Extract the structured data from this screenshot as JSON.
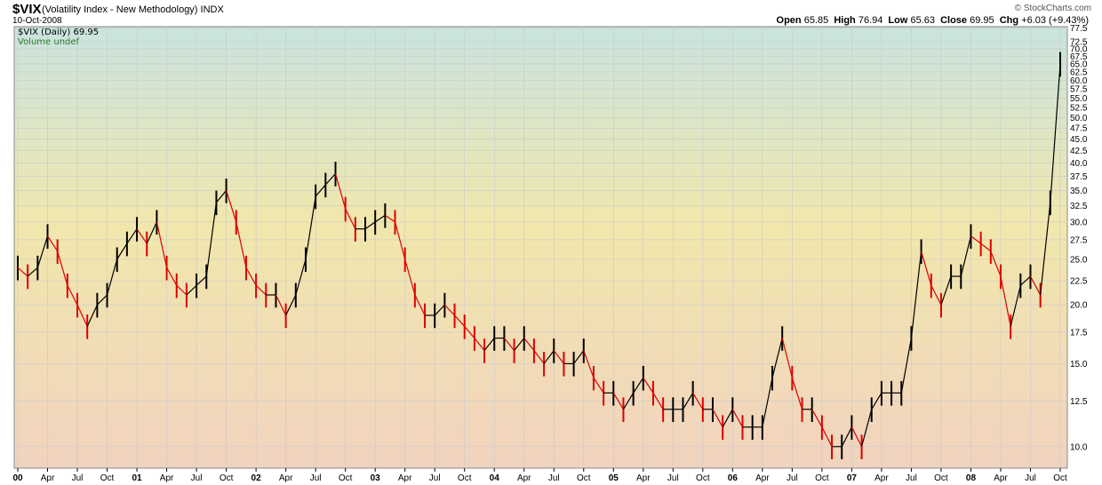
{
  "header": {
    "symbol": "$VIX",
    "name": "(Volatility Index - New Methodology)",
    "exchange": "INDX",
    "date": "10-Oct-2008",
    "logo": "© StockCharts.com",
    "ohlc": {
      "open_label": "Open",
      "open": "65.85",
      "high_label": "High",
      "high": "76.94",
      "low_label": "Low",
      "low": "65.63",
      "close_label": "Close",
      "close": "69.95",
      "chg_label": "Chg",
      "chg": "+6.03 (+9.43%)"
    }
  },
  "legend": {
    "series_label": "$VIX (Daily) 69.95",
    "volume_label": "Volume undef"
  },
  "colors": {
    "up": "#000000",
    "down": "#dd0000",
    "grid": "#c9c9c9",
    "bg_top": "#c9e4df",
    "bg_mid": "#f1e7ac",
    "bg_bottom": "#f1d3bf"
  },
  "chart_data": {
    "type": "line",
    "scale": "log",
    "ylim": [
      9,
      78
    ],
    "yticks": [
      "77.5",
      "72.5",
      "70.0",
      "67.5",
      "65.0",
      "62.5",
      "60.0",
      "57.5",
      "55.0",
      "52.5",
      "50.0",
      "47.5",
      "45.0",
      "42.5",
      "40.0",
      "37.5",
      "35.0",
      "32.5",
      "30.0",
      "27.5",
      "25.0",
      "22.5",
      "20.0",
      "17.5",
      "15.0",
      "12.5",
      "10.0"
    ],
    "xticks": [
      "00",
      "Apr",
      "Jul",
      "Oct",
      "01",
      "Apr",
      "Jul",
      "Oct",
      "02",
      "Apr",
      "Jul",
      "Oct",
      "03",
      "Apr",
      "Jul",
      "Oct",
      "04",
      "Apr",
      "Jul",
      "Oct",
      "05",
      "Apr",
      "Jul",
      "Oct",
      "06",
      "Apr",
      "Jul",
      "Oct",
      "07",
      "Apr",
      "Jul",
      "Oct",
      "08",
      "Apr",
      "Jul",
      "Oct"
    ],
    "x": [
      "2000-01",
      "2000-02",
      "2000-03",
      "2000-04",
      "2000-05",
      "2000-06",
      "2000-07",
      "2000-08",
      "2000-09",
      "2000-10",
      "2000-11",
      "2000-12",
      "2001-01",
      "2001-02",
      "2001-03",
      "2001-04",
      "2001-05",
      "2001-06",
      "2001-07",
      "2001-08",
      "2001-09",
      "2001-10",
      "2001-11",
      "2001-12",
      "2002-01",
      "2002-02",
      "2002-03",
      "2002-04",
      "2002-05",
      "2002-06",
      "2002-07",
      "2002-08",
      "2002-09",
      "2002-10",
      "2002-11",
      "2002-12",
      "2003-01",
      "2003-02",
      "2003-03",
      "2003-04",
      "2003-05",
      "2003-06",
      "2003-07",
      "2003-08",
      "2003-09",
      "2003-10",
      "2003-11",
      "2003-12",
      "2004-01",
      "2004-02",
      "2004-03",
      "2004-04",
      "2004-05",
      "2004-06",
      "2004-07",
      "2004-08",
      "2004-09",
      "2004-10",
      "2004-11",
      "2004-12",
      "2005-01",
      "2005-02",
      "2005-03",
      "2005-04",
      "2005-05",
      "2005-06",
      "2005-07",
      "2005-08",
      "2005-09",
      "2005-10",
      "2005-11",
      "2005-12",
      "2006-01",
      "2006-02",
      "2006-03",
      "2006-04",
      "2006-05",
      "2006-06",
      "2006-07",
      "2006-08",
      "2006-09",
      "2006-10",
      "2006-11",
      "2006-12",
      "2007-01",
      "2007-02",
      "2007-03",
      "2007-04",
      "2007-05",
      "2007-06",
      "2007-07",
      "2007-08",
      "2007-09",
      "2007-10",
      "2007-11",
      "2007-12",
      "2008-01",
      "2008-02",
      "2008-03",
      "2008-04",
      "2008-05",
      "2008-06",
      "2008-07",
      "2008-08",
      "2008-09",
      "2008-10"
    ],
    "series": [
      {
        "values": [
          24,
          23,
          24,
          28,
          26,
          22,
          20,
          18,
          20,
          21,
          25,
          27,
          29,
          27,
          30,
          24,
          22,
          21,
          22,
          23,
          33,
          35,
          30,
          24,
          22,
          21,
          21,
          19,
          21,
          25,
          34,
          36,
          38,
          32,
          29,
          29,
          30,
          31,
          30,
          25,
          21,
          19,
          19,
          20,
          19,
          18,
          17,
          16,
          17,
          17,
          16,
          17,
          16,
          15,
          16,
          15,
          15,
          16,
          14,
          13,
          13,
          12,
          13,
          14,
          13,
          12,
          12,
          12,
          13,
          12,
          12,
          11,
          12,
          11,
          11,
          11,
          14,
          17,
          14,
          12,
          12,
          11,
          10,
          10,
          11,
          10,
          12,
          13,
          13,
          13,
          17,
          26,
          22,
          20,
          23,
          23,
          28,
          27,
          26,
          23,
          18,
          22,
          23,
          21,
          33,
          65
        ]
      }
    ]
  }
}
